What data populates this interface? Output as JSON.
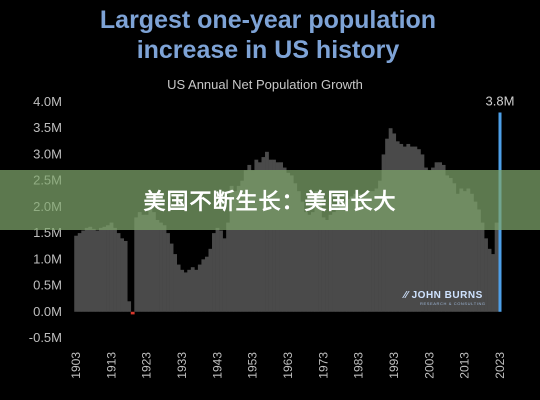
{
  "chart_data": {
    "type": "bar",
    "title": "Largest one-year population increase in US history",
    "subtitle": "US Annual Net Population Growth",
    "xlabel": "",
    "ylabel": "",
    "x_tick_labels": [
      "1903",
      "1913",
      "1923",
      "1933",
      "1943",
      "1953",
      "1963",
      "1973",
      "1983",
      "1993",
      "2003",
      "2013",
      "2023"
    ],
    "y_tick_labels": [
      "4.0M",
      "3.5M",
      "3.0M",
      "2.5M",
      "2.0M",
      "1.5M",
      "1.0M",
      "0.5M",
      "0.0M",
      "-0.5M"
    ],
    "ylim": [
      -0.5,
      4.0
    ],
    "xlim": [
      1903,
      2023
    ],
    "grid": false,
    "highlight": {
      "year": 2023,
      "value": 3.8,
      "label": "3.8M",
      "color": "#4d9fe8"
    },
    "series": [
      {
        "years": [
          1903,
          1904,
          1905,
          1906,
          1907,
          1908,
          1909,
          1910,
          1911,
          1912,
          1913,
          1914,
          1915,
          1916,
          1917,
          1918,
          1919,
          1920,
          1921,
          1922,
          1923,
          1924,
          1925,
          1926,
          1927,
          1928,
          1929,
          1930,
          1931,
          1932,
          1933,
          1934,
          1935,
          1936,
          1937,
          1938,
          1939,
          1940,
          1941,
          1942,
          1943,
          1944,
          1945,
          1946,
          1947,
          1948,
          1949,
          1950,
          1951,
          1952,
          1953,
          1954,
          1955,
          1956,
          1957,
          1958,
          1959,
          1960,
          1961,
          1962,
          1963,
          1964,
          1965,
          1966,
          1967,
          1968,
          1969,
          1970,
          1971,
          1972,
          1973,
          1974,
          1975,
          1976,
          1977,
          1978,
          1979,
          1980,
          1981,
          1982,
          1983,
          1984,
          1985,
          1986,
          1987,
          1988,
          1989,
          1990,
          1991,
          1992,
          1993,
          1994,
          1995,
          1996,
          1997,
          1998,
          1999,
          2000,
          2001,
          2002,
          2003,
          2004,
          2005,
          2006,
          2007,
          2008,
          2009,
          2010,
          2011,
          2012,
          2013,
          2014,
          2015,
          2016,
          2017,
          2018,
          2019,
          2020,
          2021,
          2022,
          2023
        ],
        "values": [
          1.45,
          1.5,
          1.55,
          1.6,
          1.62,
          1.58,
          1.55,
          1.6,
          1.62,
          1.65,
          1.7,
          1.6,
          1.5,
          1.4,
          1.35,
          0.2,
          -0.05,
          1.8,
          1.9,
          1.85,
          1.85,
          2.0,
          1.9,
          1.75,
          1.7,
          1.65,
          1.5,
          1.3,
          1.1,
          0.9,
          0.8,
          0.75,
          0.8,
          0.85,
          0.8,
          0.9,
          1.0,
          1.05,
          1.2,
          1.5,
          1.6,
          1.55,
          1.4,
          1.7,
          2.4,
          2.3,
          2.4,
          2.5,
          2.7,
          2.8,
          2.7,
          2.9,
          2.85,
          2.95,
          3.05,
          2.9,
          2.9,
          2.85,
          2.85,
          2.75,
          2.65,
          2.6,
          2.45,
          2.3,
          2.1,
          1.9,
          1.85,
          1.9,
          2.3,
          2.1,
          1.8,
          1.75,
          1.85,
          1.9,
          1.95,
          2.05,
          2.1,
          2.15,
          2.2,
          2.25,
          2.25,
          2.2,
          2.25,
          2.3,
          2.3,
          2.35,
          2.5,
          3.0,
          3.3,
          3.5,
          3.4,
          3.25,
          3.2,
          3.15,
          3.2,
          3.15,
          3.15,
          3.1,
          3.0,
          2.75,
          2.7,
          2.75,
          2.85,
          2.85,
          2.8,
          2.6,
          2.55,
          2.45,
          2.25,
          2.35,
          2.3,
          2.35,
          2.25,
          2.1,
          1.95,
          1.7,
          1.4,
          1.2,
          1.1,
          1.7,
          3.8
        ]
      }
    ]
  },
  "overlay": {
    "banner_text": "美国不断生长：美国长大",
    "logo_text": "JOHN BURNS",
    "logo_subtext": "RESEARCH & CONSULTING"
  },
  "colors": {
    "background": "#000000",
    "bars": "#4a4a4a",
    "title": "#7ea3d6",
    "highlight": "#4d9fe8",
    "negative": "#d9382c",
    "banner": "#80a66c"
  }
}
